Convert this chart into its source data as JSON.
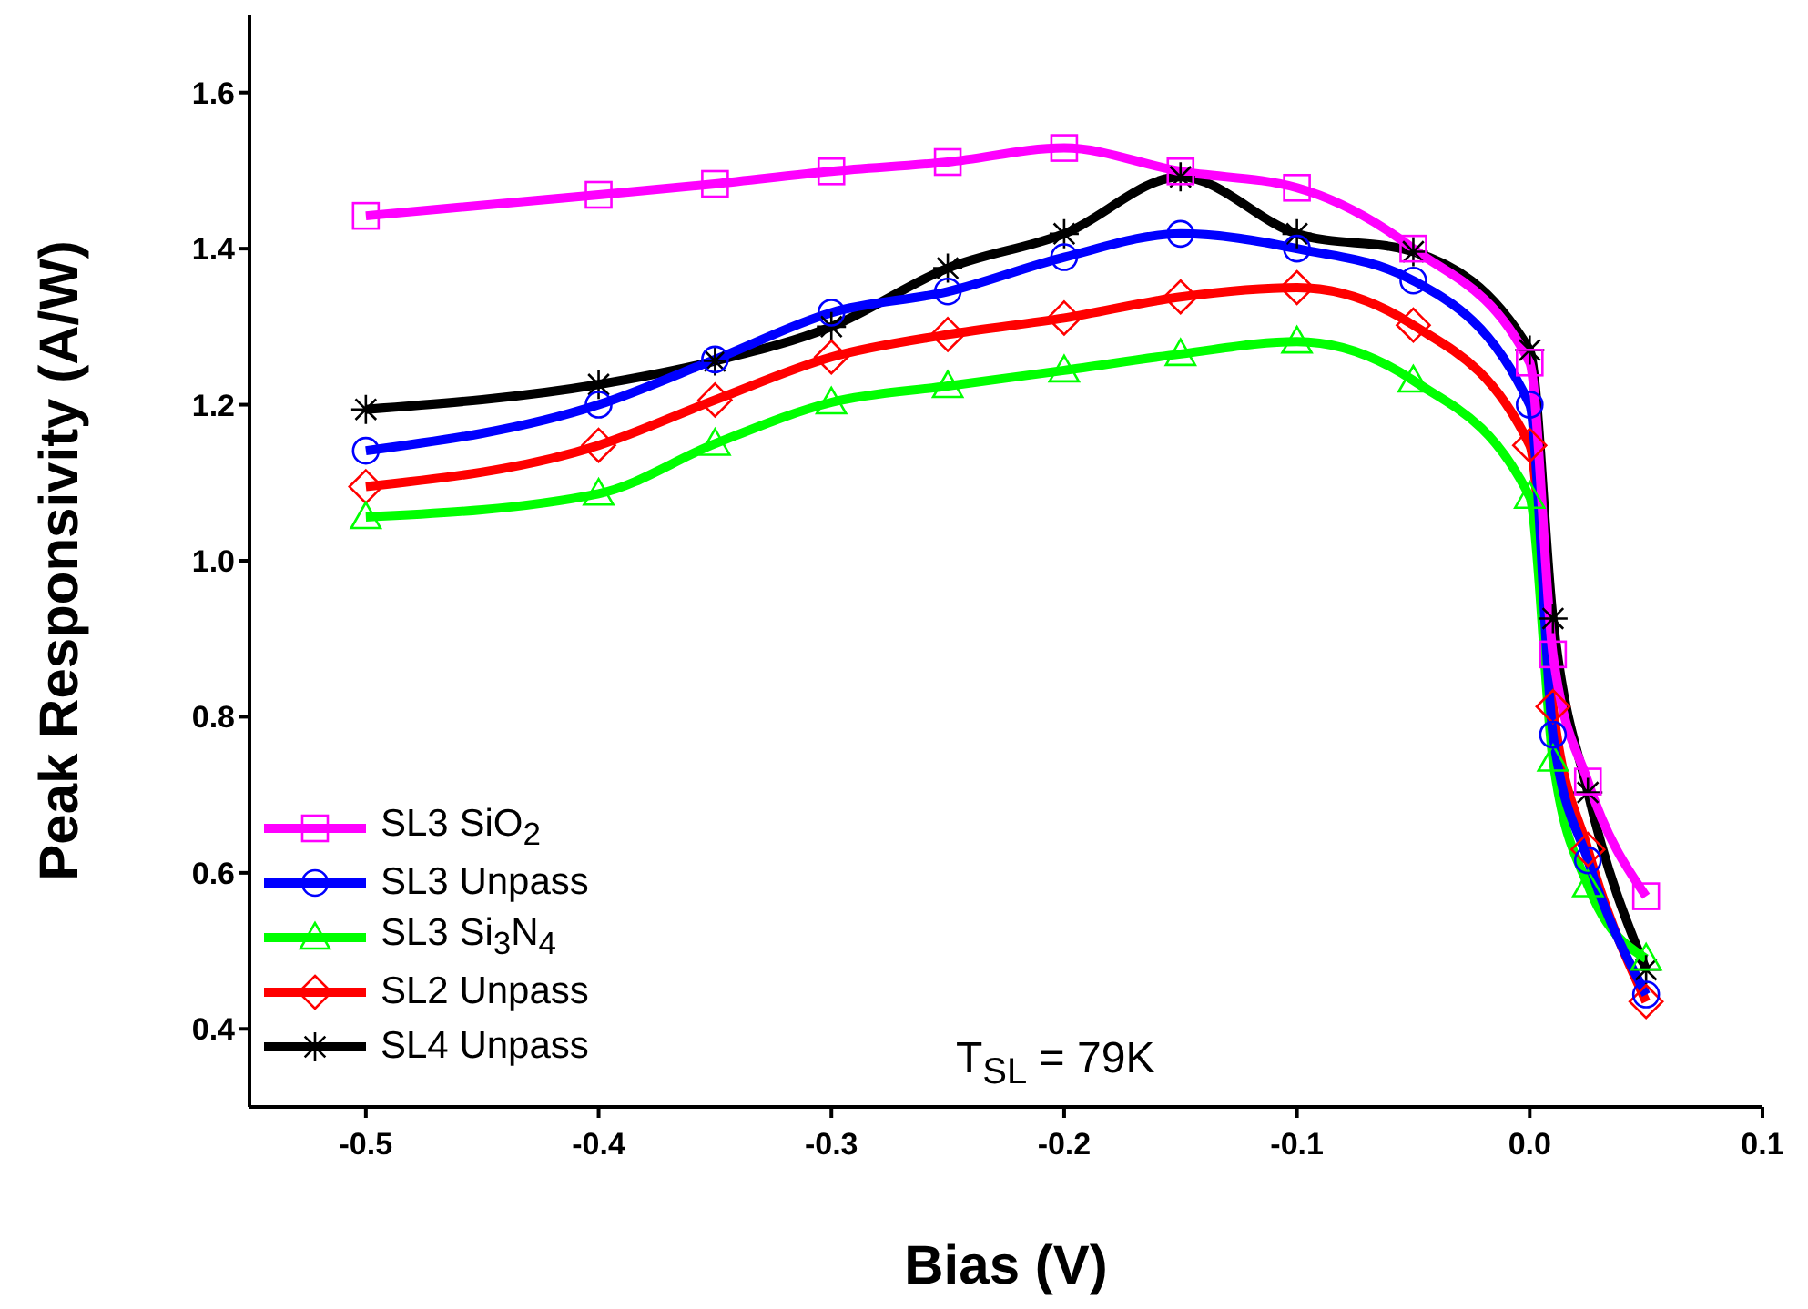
{
  "chart_data": {
    "type": "line",
    "xlabel": "Bias (V)",
    "ylabel": "Peak Responsivity (A/W)",
    "xlim": [
      -0.55,
      0.1
    ],
    "xticks": [
      -0.5,
      -0.4,
      -0.3,
      -0.2,
      -0.1,
      {
        "value": 0,
        "label": "0.0"
      },
      0.1
    ],
    "ylim": [
      0.3,
      1.7
    ],
    "yticks": [
      0.4,
      0.6,
      0.8,
      {
        "value": 1,
        "label": "1.0"
      },
      1.2,
      1.4,
      1.6
    ],
    "x": [
      -0.5,
      -0.4,
      -0.35,
      -0.3,
      -0.25,
      -0.2,
      -0.15,
      -0.1,
      -0.05,
      0,
      0.01,
      0.025,
      0.05
    ],
    "series": [
      {
        "name": "SL3 SiO$_{2}$",
        "color": "#ff00ff",
        "marker": "square",
        "values": [
          1.442,
          1.469,
          1.483,
          1.499,
          1.511,
          1.529,
          1.499,
          1.478,
          1.4,
          1.254,
          0.88,
          0.717,
          0.57
        ]
      },
      {
        "name": "SL3 Unpass",
        "color": "#0000ff",
        "marker": "circle",
        "values": [
          1.141,
          1.2,
          1.258,
          1.318,
          1.345,
          1.389,
          1.419,
          1.4,
          1.359,
          1.2,
          0.777,
          0.616,
          0.444
        ]
      },
      {
        "name": "SL3 Si$_{3}$N$_{4}$",
        "color": "#00ff00",
        "marker": "triangle",
        "values": [
          1.056,
          1.086,
          1.15,
          1.203,
          1.224,
          1.244,
          1.265,
          1.281,
          1.231,
          1.082,
          0.745,
          0.584,
          0.49
        ]
      },
      {
        "name": "SL2 Unpass",
        "color": "#ff0000",
        "marker": "diamond",
        "values": [
          1.095,
          1.148,
          1.206,
          1.261,
          1.29,
          1.311,
          1.338,
          1.35,
          1.302,
          1.148,
          0.813,
          0.63,
          0.435
        ]
      },
      {
        "name": "SL4 Unpass",
        "color": "#000000",
        "marker": "cross",
        "values": [
          1.194,
          1.226,
          1.256,
          1.3,
          1.375,
          1.419,
          1.492,
          1.419,
          1.396,
          1.27,
          0.926,
          0.703,
          0.476
        ]
      }
    ],
    "annotations": [
      "T$_{SL}$ = 79K"
    ],
    "legend": "bottom left",
    "grid": false,
    "line_style": "solid"
  }
}
